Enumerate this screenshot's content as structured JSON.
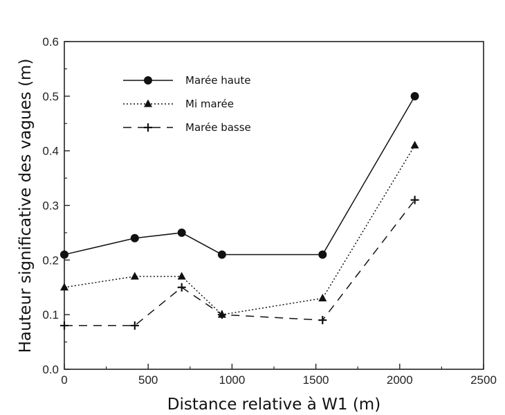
{
  "chart_data": {
    "type": "line",
    "title": "",
    "xlabel": "Distance relative à W1 (m)",
    "ylabel": "Hauteur significative des vagues (m)",
    "xlim": [
      0,
      2500
    ],
    "ylim": [
      0.0,
      0.6
    ],
    "xticks": [
      "0",
      "500",
      "1000",
      "1500",
      "2000",
      "2500"
    ],
    "yticks": [
      "0.0",
      "0.1",
      "0.2",
      "0.3",
      "0.4",
      "0.5",
      "0.6"
    ],
    "grid": false,
    "legend_position": "top-left",
    "x": [
      0,
      420,
      700,
      940,
      1540,
      2090
    ],
    "series": [
      {
        "name": "Marée haute",
        "marker": "circle",
        "line": "solid",
        "values": [
          0.21,
          0.24,
          0.25,
          0.21,
          0.21,
          0.5
        ]
      },
      {
        "name": "Mi marée",
        "marker": "triangle",
        "line": "dotted",
        "values": [
          0.15,
          0.17,
          0.17,
          0.1,
          0.13,
          0.41
        ]
      },
      {
        "name": "Marée basse",
        "marker": "plus",
        "line": "dashed",
        "values": [
          0.08,
          0.08,
          0.15,
          0.1,
          0.09,
          0.31
        ]
      }
    ]
  }
}
